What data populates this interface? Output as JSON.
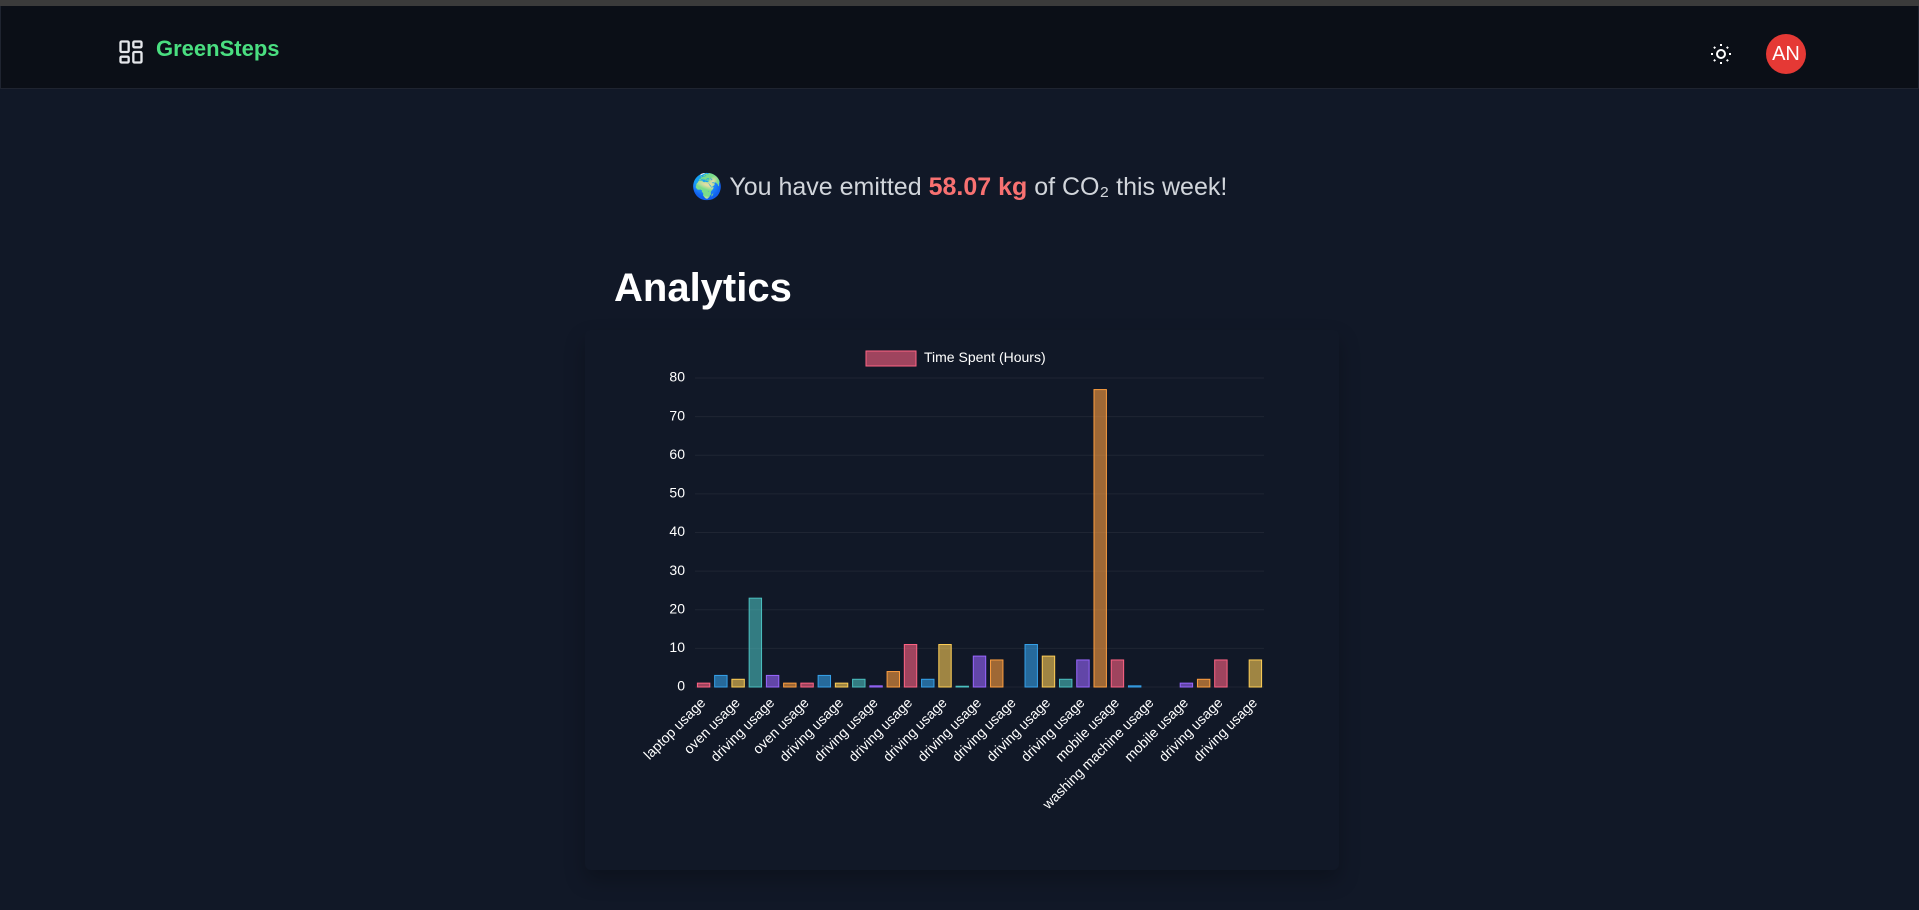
{
  "header": {
    "brand": "GreenSteps",
    "avatar": "AN"
  },
  "summary": {
    "icon": "🌍",
    "before": "You have emitted",
    "amount": "58.07 kg",
    "after": "of CO₂ this week!"
  },
  "section_title": "Analytics",
  "chart_data": {
    "type": "bar",
    "categories": [
      "laptop usage",
      null,
      "oven usage",
      null,
      "driving usage",
      null,
      "oven usage",
      null,
      "driving usage",
      null,
      "driving usage",
      null,
      "driving usage",
      null,
      "driving usage",
      null,
      "driving usage",
      null,
      "driving usage",
      null,
      "driving usage",
      null,
      "driving usage",
      null,
      "mobile usage",
      null,
      "washing machine usage",
      null,
      "mobile usage",
      null,
      "driving usage",
      null,
      "driving usage"
    ],
    "series": [
      {
        "name": "Time Spent (Hours)",
        "color": "#ff6384",
        "colors": [
          "#ff6384",
          "#36a2eb",
          "#ffce56",
          "#4bc0c0",
          "#9966ff",
          "#ff9f40"
        ],
        "values": [
          1,
          3,
          2,
          23,
          3,
          1,
          1,
          3,
          1,
          2,
          0.3,
          4,
          11,
          2,
          11,
          0.2,
          8,
          7,
          0,
          11,
          8,
          2,
          7,
          77,
          7,
          0.3,
          0,
          0,
          1,
          2,
          7,
          0,
          7
        ]
      }
    ],
    "ylim": [
      0,
      80
    ],
    "yticks": [
      0,
      10,
      20,
      30,
      40,
      50,
      60,
      70,
      80
    ],
    "grid": true,
    "legend": "top"
  }
}
